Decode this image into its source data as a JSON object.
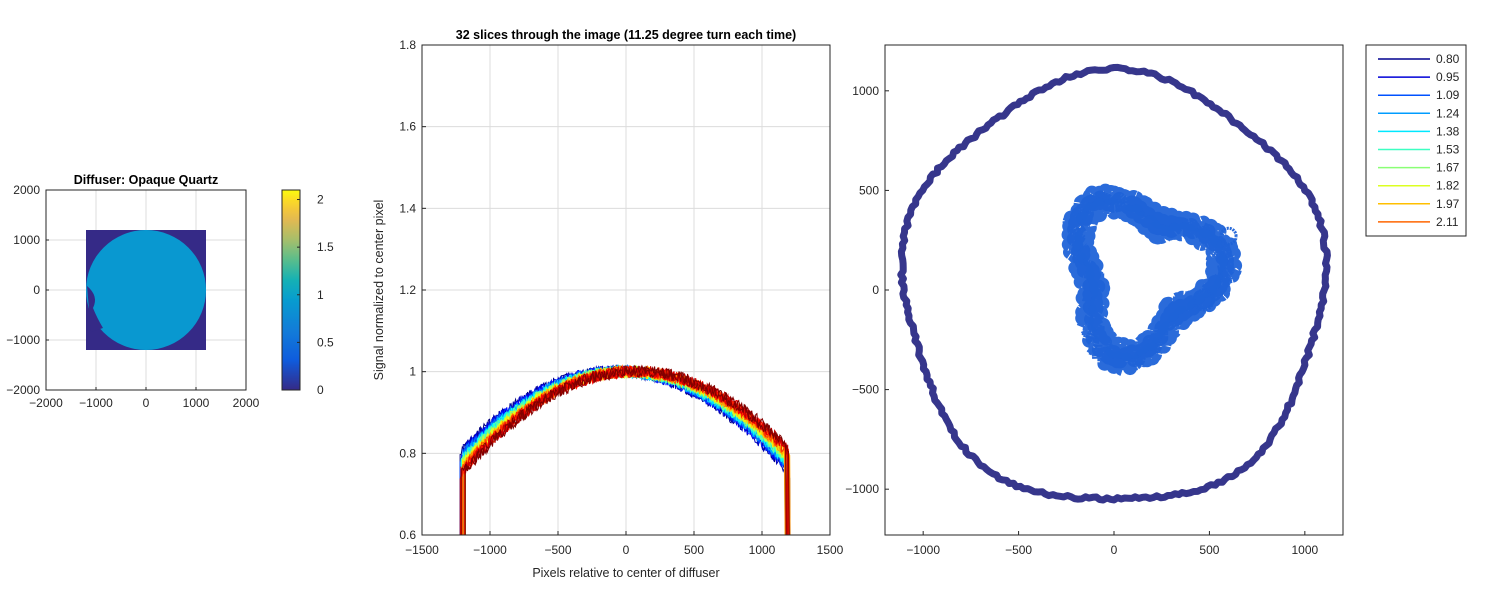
{
  "chart_data": [
    {
      "type": "heatmap",
      "title": "Diffuser: Opaque Quartz",
      "xlim": [
        -2000,
        2000
      ],
      "ylim": [
        -2000,
        2000
      ],
      "xticks": [
        -2000,
        -1000,
        0,
        1000,
        2000
      ],
      "yticks": [
        -2000,
        -1000,
        0,
        1000,
        2000
      ],
      "image_extent": [
        -1200,
        1200
      ],
      "disk_radius": 1200,
      "background_value": 0,
      "disk_value": 0.9,
      "colorbar": {
        "range": [
          0,
          2.1
        ],
        "ticks": [
          0,
          0.5,
          1,
          1.5,
          2
        ]
      }
    },
    {
      "type": "line",
      "title": "32 slices through the image (11.25 degree turn each time)",
      "xlabel": "Pixels relative to center of diffuser",
      "ylabel": "Signal normalized to center pixel",
      "xlim": [
        -1500,
        1500
      ],
      "ylim": [
        0.6,
        1.8
      ],
      "xticks": [
        -1500,
        -1000,
        -500,
        0,
        500,
        1000,
        1500
      ],
      "yticks": [
        0.6,
        0.8,
        1,
        1.2,
        1.4,
        1.6,
        1.8
      ],
      "series_count": 32,
      "edge_x": [
        -1200,
        1190
      ],
      "peak_value": 1.0,
      "edge_value": 0.78
    },
    {
      "type": "scatter",
      "xlim": [
        -1200,
        1200
      ],
      "ylim": [
        -1230,
        1230
      ],
      "xticks": [
        -1000,
        -500,
        0,
        500,
        1000
      ],
      "yticks": [
        -1000,
        -500,
        0,
        500,
        1000
      ],
      "contours": [
        {
          "level": "0.80",
          "color": "#2b2b86",
          "shape": "outer-ring",
          "radius": 1080
        },
        {
          "level": "1.09",
          "color": "#1f63d8",
          "shape": "inner-ring",
          "center": [
            150,
            80
          ],
          "radius": 470
        },
        {
          "level": "1.09",
          "color": "#1f63d8",
          "shape": "small-ring",
          "center": [
            600,
            270
          ],
          "radius": 40
        },
        {
          "level": "1.09",
          "color": "#1f63d8",
          "shape": "small-ring",
          "center": [
            470,
            -50
          ],
          "radius": 50
        }
      ],
      "legend": {
        "position": "right",
        "entries": [
          {
            "label": "0.80",
            "color": "#00008f"
          },
          {
            "label": "0.95",
            "color": "#0000d8"
          },
          {
            "label": "1.09",
            "color": "#0052ff"
          },
          {
            "label": "1.24",
            "color": "#009cff"
          },
          {
            "label": "1.38",
            "color": "#00e8ff"
          },
          {
            "label": "1.53",
            "color": "#3dffc2"
          },
          {
            "label": "1.67",
            "color": "#8aff75"
          },
          {
            "label": "1.82",
            "color": "#dcff22"
          },
          {
            "label": "1.97",
            "color": "#ffbf00"
          },
          {
            "label": "2.11",
            "color": "#ff6600"
          }
        ]
      }
    }
  ]
}
